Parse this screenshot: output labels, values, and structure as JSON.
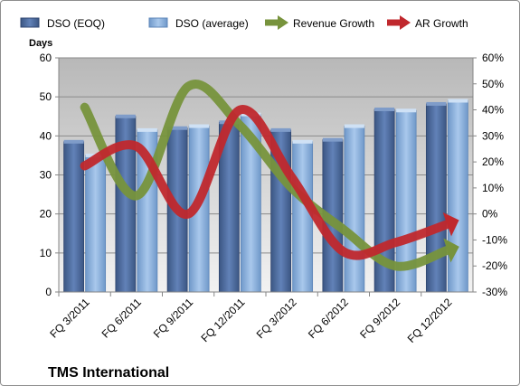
{
  "chart_data": {
    "type": "bar",
    "title": "TMS International",
    "y_left_label": "Days",
    "y_left_lim": [
      0,
      60
    ],
    "y_left_ticks": [
      "0",
      "10",
      "20",
      "30",
      "40",
      "50",
      "60"
    ],
    "y_right_lim": [
      -30,
      60
    ],
    "y_right_ticks": [
      "-30%",
      "-20%",
      "-10%",
      "0%",
      "10%",
      "20%",
      "30%",
      "40%",
      "50%",
      "60%"
    ],
    "categories": [
      "FQ 3/2011",
      "FQ 6/2011",
      "FQ 9/2011",
      "FQ 12/2011",
      "FQ 3/2012",
      "FQ 6/2012",
      "FQ 9/2012",
      "FQ 12/2012"
    ],
    "legend_position": "top",
    "grid": true,
    "series": [
      {
        "name": "DSO (EOQ)",
        "kind": "bar",
        "axis": "left",
        "color": "#4f6fa5",
        "values": [
          38.5,
          45,
          42,
          43.5,
          41.5,
          39,
          46.8,
          48.2
        ]
      },
      {
        "name": "DSO (average)",
        "kind": "bar",
        "axis": "left",
        "color": "#8db4e2",
        "values": [
          35,
          41.5,
          42.5,
          45.5,
          38.5,
          42.5,
          46.5,
          49
        ]
      },
      {
        "name": "Revenue Growth",
        "kind": "line",
        "axis": "right",
        "color": "#77933c",
        "values": [
          41,
          7,
          49,
          34,
          10,
          -6,
          -20,
          -14
        ]
      },
      {
        "name": "AR Growth",
        "kind": "line",
        "axis": "right",
        "color": "#c0282d",
        "values": [
          18.5,
          26,
          0,
          40,
          14,
          -14.5,
          -11,
          -4
        ]
      }
    ]
  }
}
